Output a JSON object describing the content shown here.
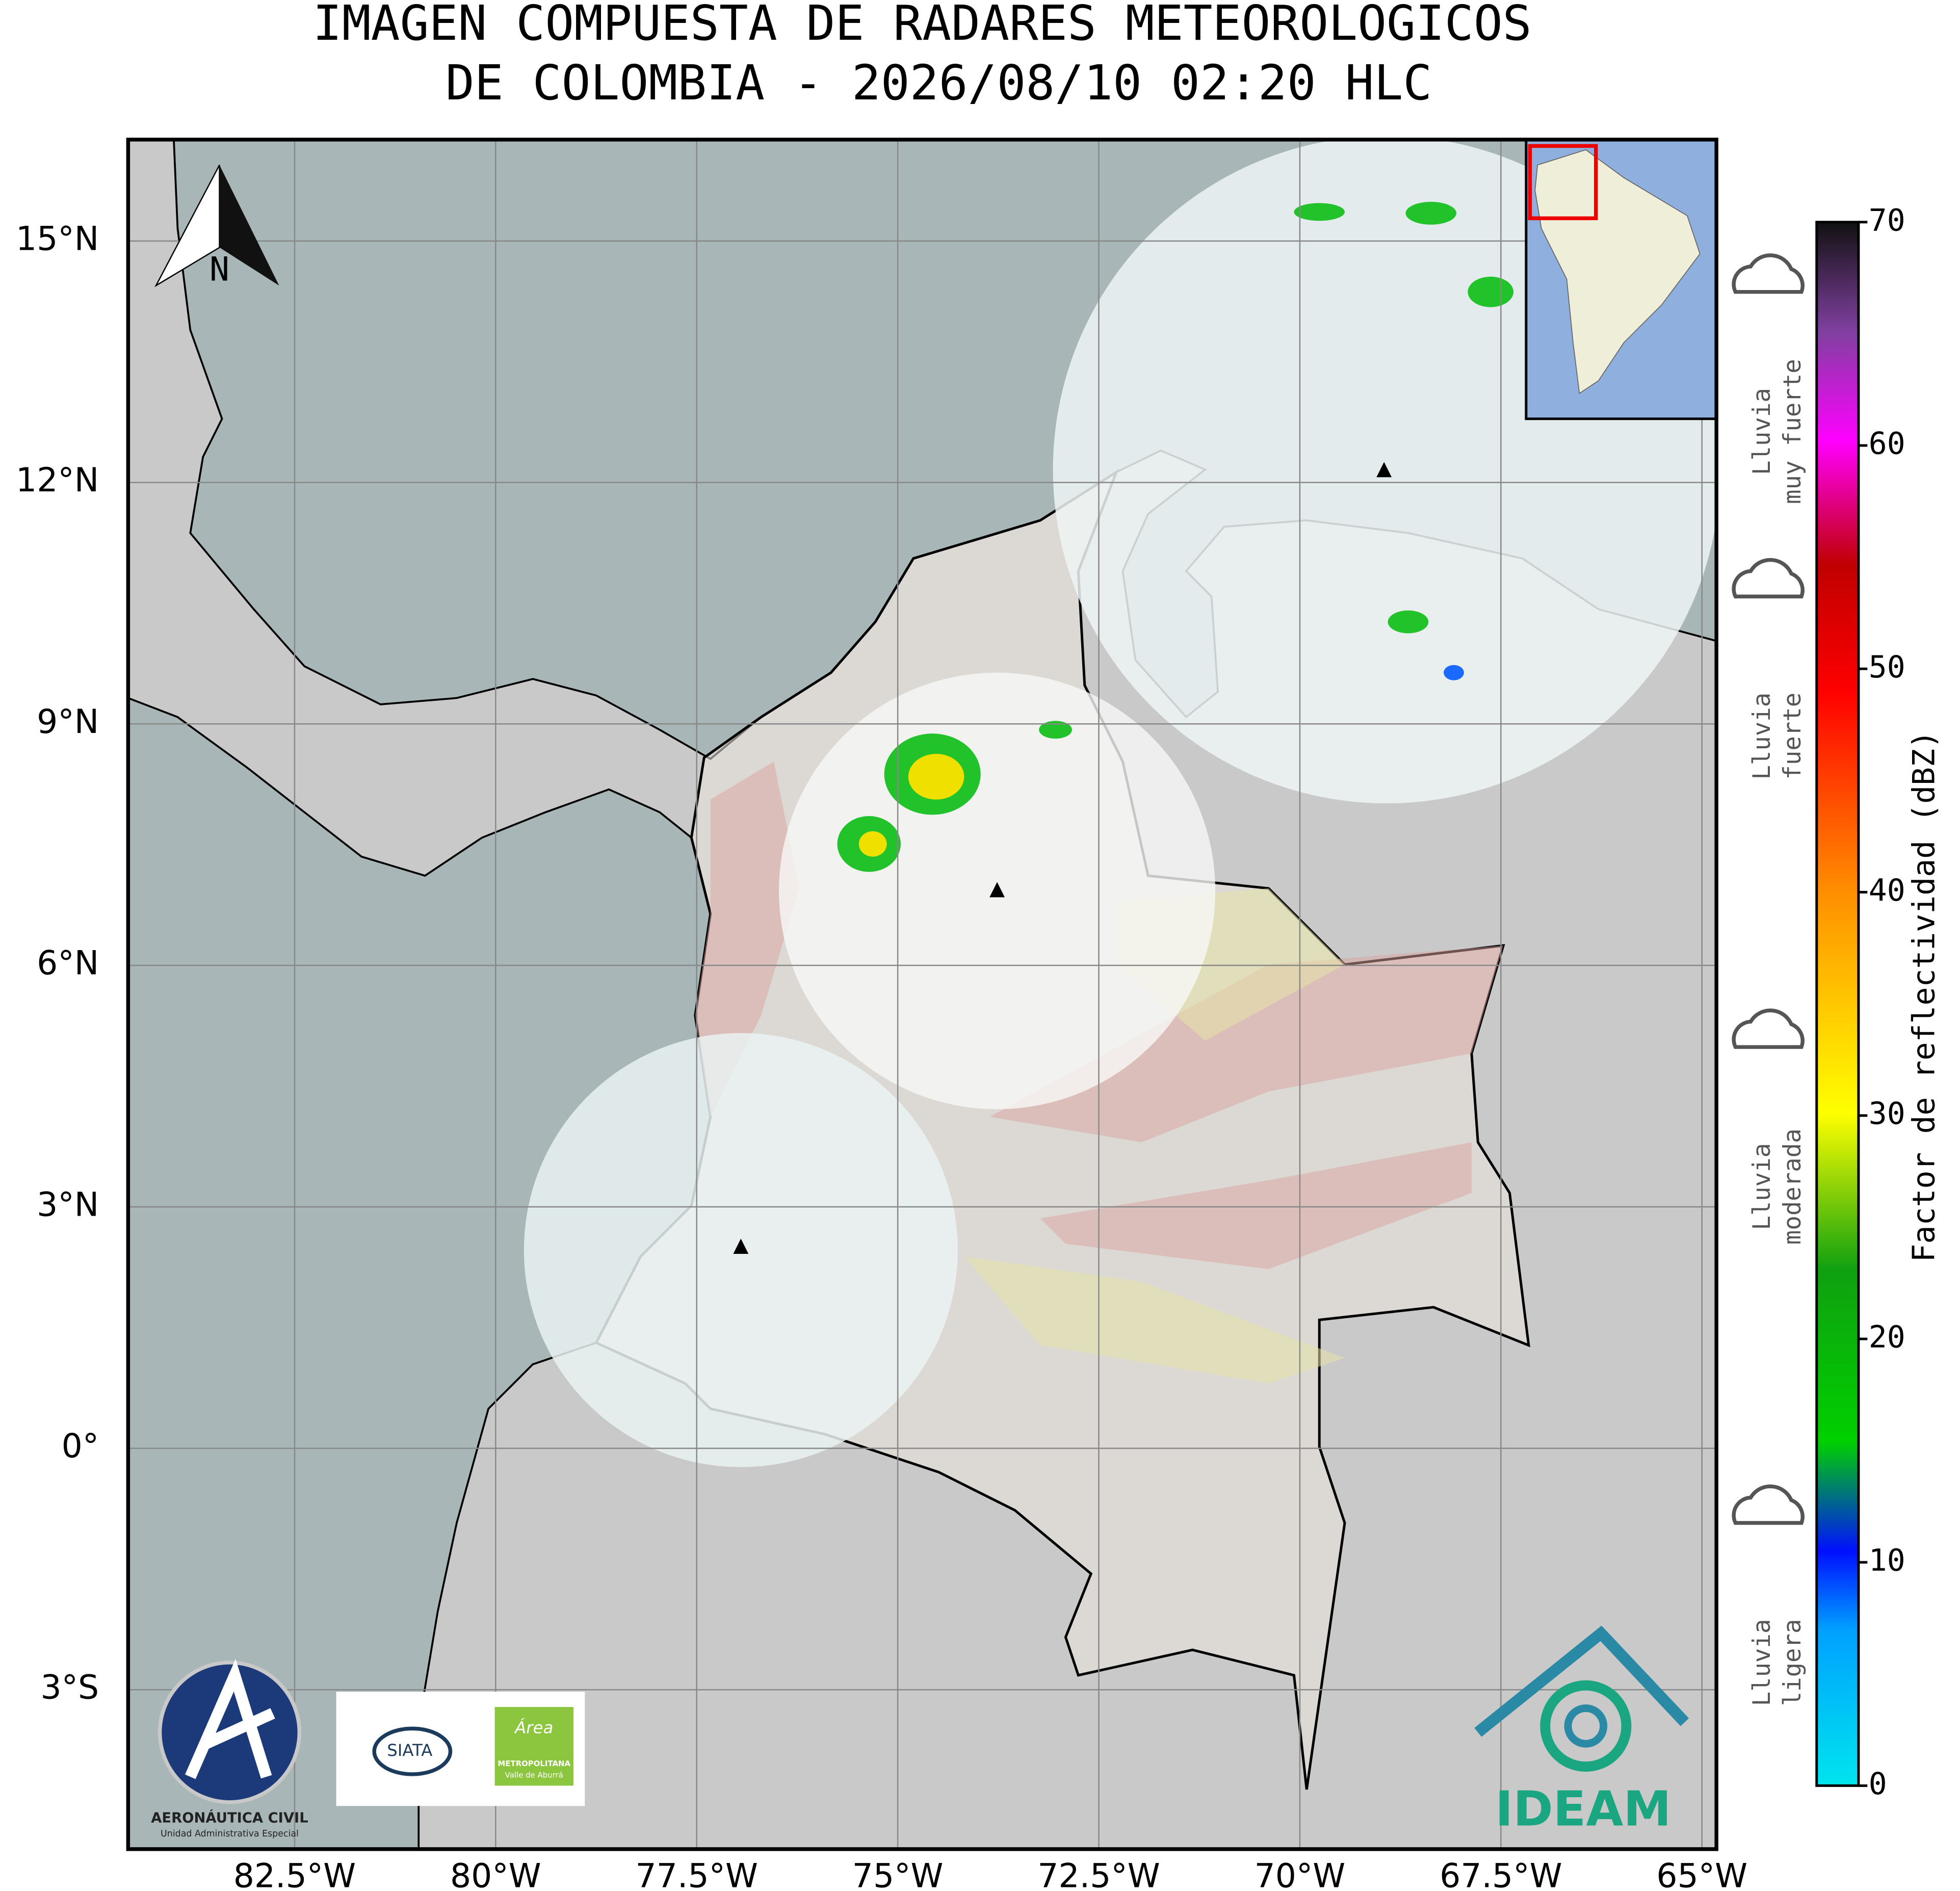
{
  "title": [
    "IMAGEN COMPUESTA DE RADARES METEOROLOGICOS",
    "DE COLOMBIA - 2026/08/10 02:20 HLC"
  ],
  "map": {
    "xlim": [
      -84.57,
      -64.82
    ],
    "ylim": [
      -4.98,
      16.26
    ],
    "xticks": [
      {
        "value": -82.5,
        "label": "82.5°W"
      },
      {
        "value": -80,
        "label": "80°W"
      },
      {
        "value": -77.5,
        "label": "77.5°W"
      },
      {
        "value": -75,
        "label": "75°W"
      },
      {
        "value": -72.5,
        "label": "72.5°W"
      },
      {
        "value": -70,
        "label": "70°W"
      },
      {
        "value": -67.5,
        "label": "67.5°W"
      },
      {
        "value": -65,
        "label": "65°W"
      }
    ],
    "yticks": [
      {
        "value": 15,
        "label": "15°N"
      },
      {
        "value": 12,
        "label": "12°N"
      },
      {
        "value": 9,
        "label": "9°N"
      },
      {
        "value": 6,
        "label": "6°N"
      },
      {
        "value": 3,
        "label": "3°N"
      },
      {
        "value": 0,
        "label": "0°"
      },
      {
        "value": -3,
        "label": "3°S"
      }
    ],
    "grid": true,
    "north_label": "N"
  },
  "colorbar": {
    "label": "Factor de reflectividad (dBZ)",
    "lim": [
      0,
      70
    ],
    "ticks": [
      0,
      10,
      20,
      30,
      40,
      50,
      60,
      70
    ]
  },
  "intensity_legend": [
    [
      "Lluvia",
      "muy fuerte"
    ],
    [
      "Lluvia",
      "fuerte"
    ],
    [
      "Lluvia",
      "moderada"
    ],
    [
      "Lluvia",
      "ligera"
    ]
  ],
  "logos": {
    "aerocivil": [
      "AERONÁUTICA CIVIL",
      "Unidad Administrativa Especial"
    ],
    "siata": "SIATA",
    "area": [
      "Área",
      "METROPOLITANA",
      "Valle de Aburrá"
    ],
    "ideam": "IDEAM"
  }
}
